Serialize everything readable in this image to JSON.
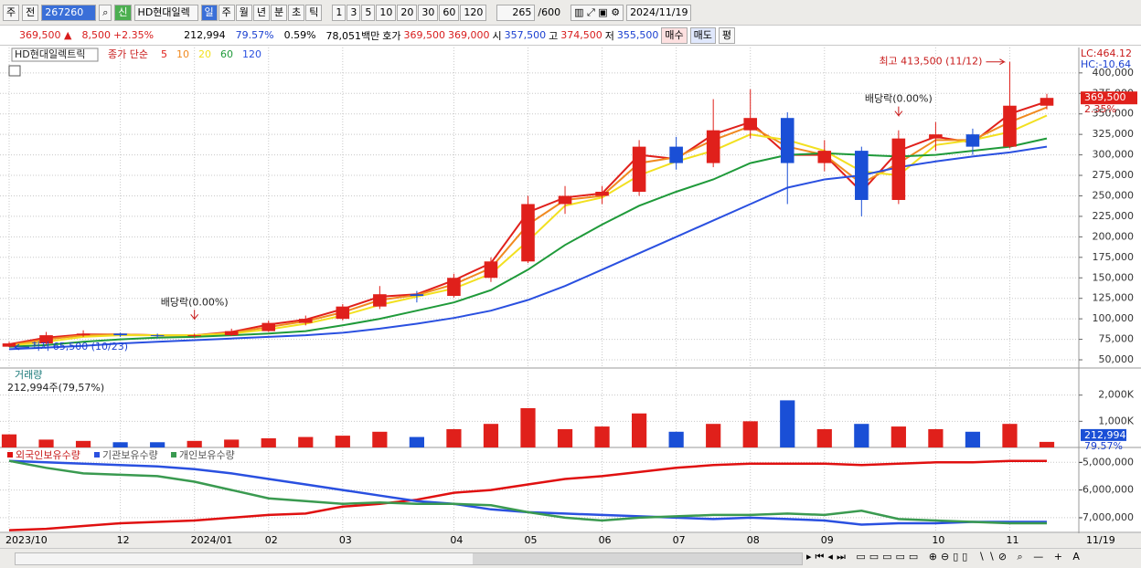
{
  "toolbar": {
    "market": "주",
    "prev": "전",
    "code": "267260",
    "badge": "신",
    "name": "HD현대일렉",
    "periods": [
      "일",
      "주",
      "월",
      "년",
      "분",
      "초",
      "틱"
    ],
    "intervals": [
      "1",
      "3",
      "5",
      "10",
      "20",
      "30",
      "60",
      "120"
    ],
    "count": "265",
    "max": "/600",
    "date": "2024/11/19"
  },
  "quote": {
    "price": "369,500 ▲",
    "change": "8,500",
    "rate": "+2.35%",
    "volume": "212,994",
    "vol_ratio": "79.57%",
    "turnover": "0.59%",
    "amount": "78,051백만",
    "ask_label": "호가",
    "ask": "369,500",
    "bid": "369,000",
    "open_label": "시",
    "open": "357,500",
    "high_label": "고",
    "high": "374,500",
    "low_label": "저",
    "low": "355,500",
    "buy": "매수",
    "sell": "매도",
    "avg": "평"
  },
  "chart_data": [
    {
      "type": "candlestick",
      "title": "HD현대일렉트릭",
      "ma_label": "종가 단순",
      "categories": [
        "2023/10",
        null,
        null,
        "12",
        null,
        "2024/01",
        null,
        "02",
        null,
        "03",
        null,
        null,
        "04",
        null,
        "05",
        null,
        "06",
        null,
        "07",
        null,
        "08",
        null,
        "09",
        null,
        null,
        "10",
        null,
        "11",
        null
      ],
      "open": [
        66000,
        70000,
        80000,
        82000,
        80000,
        79000,
        80000,
        85000,
        95000,
        100000,
        115000,
        130000,
        128000,
        150000,
        170000,
        240000,
        250000,
        255000,
        310000,
        290000,
        330000,
        345000,
        290000,
        305000,
        245000,
        320000,
        325000,
        310000,
        360000
      ],
      "high": [
        72000,
        84000,
        86000,
        83000,
        82000,
        82000,
        88000,
        98000,
        104000,
        118000,
        140000,
        134000,
        155000,
        175000,
        250000,
        262000,
        262000,
        318000,
        322000,
        368000,
        380000,
        352000,
        318000,
        310000,
        330000,
        340000,
        332000,
        413500,
        374500
      ],
      "low": [
        65500,
        69000,
        78000,
        78000,
        76000,
        77000,
        79000,
        84000,
        92000,
        98000,
        112000,
        120000,
        126000,
        145000,
        168000,
        228000,
        240000,
        250000,
        282000,
        285000,
        320000,
        240000,
        280000,
        225000,
        240000,
        305000,
        300000,
        308000,
        355500
      ],
      "close": [
        70000,
        80000,
        82000,
        80000,
        79000,
        80000,
        85000,
        95000,
        100000,
        115000,
        130000,
        128000,
        150000,
        170000,
        240000,
        250000,
        255000,
        310000,
        290000,
        330000,
        345000,
        290000,
        305000,
        245000,
        320000,
        325000,
        310000,
        360000,
        369500
      ],
      "series": [
        {
          "name": "5",
          "color": "#e0201b",
          "values": [
            69000,
            77000,
            81000,
            81000,
            80000,
            80000,
            84000,
            93000,
            99000,
            112000,
            127000,
            130000,
            147000,
            168000,
            230000,
            248000,
            253000,
            300000,
            295000,
            325000,
            340000,
            300000,
            300000,
            255000,
            305000,
            322000,
            315000,
            350000,
            365000
          ]
        },
        {
          "name": "10",
          "color": "#f08a20",
          "values": [
            68000,
            75000,
            80000,
            81000,
            80000,
            80000,
            83000,
            90000,
            97000,
            108000,
            123000,
            129000,
            142000,
            162000,
            215000,
            245000,
            250000,
            290000,
            297000,
            318000,
            335000,
            310000,
            300000,
            265000,
            290000,
            318000,
            318000,
            340000,
            358000
          ]
        },
        {
          "name": "20",
          "color": "#f2e020",
          "values": [
            67000,
            72000,
            78000,
            80000,
            80000,
            80000,
            82000,
            87000,
            94000,
            104000,
            117000,
            127000,
            137000,
            155000,
            195000,
            238000,
            248000,
            275000,
            292000,
            305000,
            325000,
            318000,
            305000,
            280000,
            275000,
            312000,
            318000,
            328000,
            348000
          ]
        },
        {
          "name": "60",
          "color": "#1f9a3a",
          "values": [
            66000,
            68000,
            72000,
            75000,
            77000,
            78000,
            80000,
            82000,
            85000,
            92000,
            100000,
            110000,
            120000,
            135000,
            160000,
            190000,
            215000,
            238000,
            255000,
            270000,
            290000,
            300000,
            302000,
            300000,
            298000,
            300000,
            305000,
            310000,
            320000
          ]
        },
        {
          "name": "120",
          "color": "#2a50e0",
          "values": [
            63000,
            65000,
            67000,
            70000,
            72000,
            74000,
            76000,
            78000,
            80000,
            83000,
            88000,
            94000,
            101000,
            110000,
            123000,
            140000,
            160000,
            180000,
            200000,
            220000,
            240000,
            260000,
            270000,
            275000,
            285000,
            292000,
            298000,
            303000,
            310000
          ]
        }
      ],
      "ylim": [
        40000,
        431000
      ],
      "yticks": [
        {
          "value": 50000,
          "label": "50,000"
        },
        {
          "value": 75000,
          "label": "75,000"
        },
        {
          "value": 100000,
          "label": "100,000"
        },
        {
          "value": 125000,
          "label": "125,000"
        },
        {
          "value": 150000,
          "label": "150,000"
        },
        {
          "value": 175000,
          "label": "175,000"
        },
        {
          "value": 200000,
          "label": "200,000"
        },
        {
          "value": 225000,
          "label": "225,000"
        },
        {
          "value": 250000,
          "label": "250,000"
        },
        {
          "value": 275000,
          "label": "275,000"
        },
        {
          "value": 300000,
          "label": "300,000"
        },
        {
          "value": 325000,
          "label": "325,000"
        },
        {
          "value": 350000,
          "label": "350,000"
        },
        {
          "value": 375000,
          "label": "375,000"
        },
        {
          "value": 400000,
          "label": "400,000"
        }
      ],
      "annotations": [
        {
          "text": "최고 413,500 (11/12)",
          "value": 413500
        },
        {
          "text": "최저 65,500 (10/23)",
          "value": 65500
        },
        {
          "text": "배당락(0.00%)"
        },
        {
          "text": "배당락(0.00%)"
        }
      ],
      "indicators": [
        "LC:464.12",
        "HC:-10.64"
      ],
      "last_label": "369,500",
      "last_rate": "2.35%",
      "up_color": "#e0201b",
      "down_color": "#1a4fd6",
      "grid": true
    },
    {
      "type": "bar",
      "title": "거래량",
      "subtitle": "212,994주(79,57%)",
      "values": [
        500000,
        300000,
        250000,
        200000,
        200000,
        250000,
        300000,
        350000,
        400000,
        450000,
        600000,
        400000,
        700000,
        900000,
        1500000,
        700000,
        800000,
        1300000,
        600000,
        900000,
        1000000,
        1800000,
        700000,
        900000,
        800000,
        700000,
        600000,
        900000,
        212994
      ],
      "ylim": [
        0,
        3000000
      ],
      "yticks": [
        {
          "value": 1000000,
          "label": "1,000K"
        },
        {
          "value": 2000000,
          "label": "2,000K"
        }
      ],
      "last_label": "212,994",
      "last_rate": "79.57%"
    },
    {
      "type": "line",
      "series": [
        {
          "name": "외국인보유수량",
          "color": "#e01010",
          "values": [
            -7450000,
            -7400000,
            -7300000,
            -7200000,
            -7150000,
            -7100000,
            -7000000,
            -6900000,
            -6850000,
            -6600000,
            -6500000,
            -6350000,
            -6100000,
            -6000000,
            -5800000,
            -5600000,
            -5500000,
            -5350000,
            -5200000,
            -5100000,
            -5050000,
            -5050000,
            -5050000,
            -5100000,
            -5050000,
            -5000000,
            -5000000,
            -4950000,
            -4950000
          ]
        },
        {
          "name": "기관보유수량",
          "color": "#2a50e0",
          "values": [
            -4950000,
            -5000000,
            -5050000,
            -5100000,
            -5150000,
            -5250000,
            -5400000,
            -5600000,
            -5800000,
            -6000000,
            -6200000,
            -6400000,
            -6500000,
            -6700000,
            -6800000,
            -6850000,
            -6900000,
            -6950000,
            -7000000,
            -7050000,
            -7000000,
            -7050000,
            -7100000,
            -7250000,
            -7200000,
            -7200000,
            -7150000,
            -7150000,
            -7150000
          ]
        },
        {
          "name": "개인보유수량",
          "color": "#3a9a50",
          "values": [
            -4950000,
            -5200000,
            -5400000,
            -5450000,
            -5500000,
            -5700000,
            -6000000,
            -6300000,
            -6400000,
            -6500000,
            -6450000,
            -6500000,
            -6500000,
            -6550000,
            -6800000,
            -7000000,
            -7100000,
            -7000000,
            -6950000,
            -6900000,
            -6900000,
            -6850000,
            -6900000,
            -6750000,
            -7050000,
            -7100000,
            -7150000,
            -7200000,
            -7200000
          ]
        }
      ],
      "ylim": [
        -7530000,
        -4530000
      ],
      "yticks": [
        {
          "value": -5000000,
          "label": "-5,000,000"
        },
        {
          "value": -6000000,
          "label": "-6,000,000"
        },
        {
          "value": -7000000,
          "label": "-7,000,000"
        }
      ]
    }
  ],
  "x_axis_end": "11/19"
}
